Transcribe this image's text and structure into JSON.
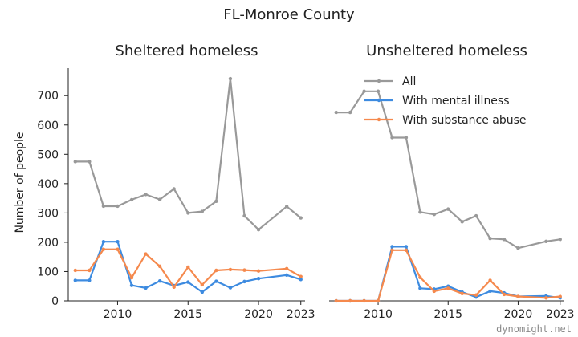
{
  "suptitle": "FL-Monroe County",
  "watermark": "dynomight.net",
  "chart_data": [
    {
      "type": "line",
      "title": "Sheltered homeless",
      "ylabel": "Number of people",
      "xlabel": "",
      "xlim": [
        2006.5,
        2023.3
      ],
      "ylim": [
        0,
        780
      ],
      "xticks": [
        2010,
        2015,
        2020,
        2023
      ],
      "yticks": [
        0,
        100,
        200,
        300,
        400,
        500,
        600,
        700
      ],
      "series": [
        {
          "name": "All",
          "color": "#999999",
          "x": [
            2007,
            2008,
            2009,
            2010,
            2011,
            2012,
            2013,
            2014,
            2015,
            2016,
            2017,
            2018,
            2019,
            2020,
            2022,
            2023
          ],
          "y": [
            475,
            475,
            323,
            323,
            345,
            363,
            346,
            382,
            300,
            305,
            340,
            758,
            290,
            243,
            322,
            283
          ]
        },
        {
          "name": "With mental illness",
          "color": "#3d8be0",
          "x": [
            2007,
            2008,
            2009,
            2010,
            2011,
            2012,
            2013,
            2014,
            2015,
            2016,
            2017,
            2018,
            2019,
            2020,
            2022,
            2023
          ],
          "y": [
            70,
            70,
            202,
            202,
            53,
            44,
            68,
            52,
            64,
            30,
            67,
            45,
            66,
            76,
            88,
            73
          ]
        },
        {
          "name": "With substance abuse",
          "color": "#f5894d",
          "x": [
            2007,
            2008,
            2009,
            2010,
            2011,
            2012,
            2013,
            2014,
            2015,
            2016,
            2017,
            2018,
            2019,
            2020,
            2022,
            2023
          ],
          "y": [
            104,
            104,
            176,
            176,
            79,
            160,
            118,
            47,
            115,
            55,
            104,
            107,
            105,
            102,
            110,
            83
          ]
        }
      ]
    },
    {
      "type": "line",
      "title": "Unsheltered homeless",
      "xlabel": "",
      "ylabel": "",
      "xlim": [
        2006.5,
        2023.3
      ],
      "ylim": [
        0,
        780
      ],
      "xticks": [
        2010,
        2015,
        2020,
        2023
      ],
      "legend": "upper center",
      "series": [
        {
          "name": "All",
          "color": "#999999",
          "x": [
            2007,
            2008,
            2009,
            2010,
            2011,
            2012,
            2013,
            2014,
            2015,
            2016,
            2017,
            2018,
            2019,
            2020,
            2022,
            2023
          ],
          "y": [
            643,
            643,
            715,
            715,
            557,
            557,
            303,
            295,
            313,
            270,
            290,
            213,
            210,
            180,
            203,
            210
          ]
        },
        {
          "name": "With mental illness",
          "color": "#3d8be0",
          "x": [
            2007,
            2008,
            2009,
            2010,
            2011,
            2012,
            2013,
            2014,
            2015,
            2016,
            2017,
            2018,
            2019,
            2020,
            2022,
            2023
          ],
          "y": [
            0,
            0,
            0,
            0,
            185,
            185,
            43,
            40,
            50,
            30,
            13,
            33,
            27,
            15,
            17,
            10
          ]
        },
        {
          "name": "With substance abuse",
          "color": "#f5894d",
          "x": [
            2007,
            2008,
            2009,
            2010,
            2011,
            2012,
            2013,
            2014,
            2015,
            2016,
            2017,
            2018,
            2019,
            2020,
            2022,
            2023
          ],
          "y": [
            0,
            0,
            0,
            0,
            173,
            173,
            80,
            33,
            43,
            25,
            20,
            70,
            22,
            15,
            10,
            15
          ]
        }
      ]
    }
  ]
}
